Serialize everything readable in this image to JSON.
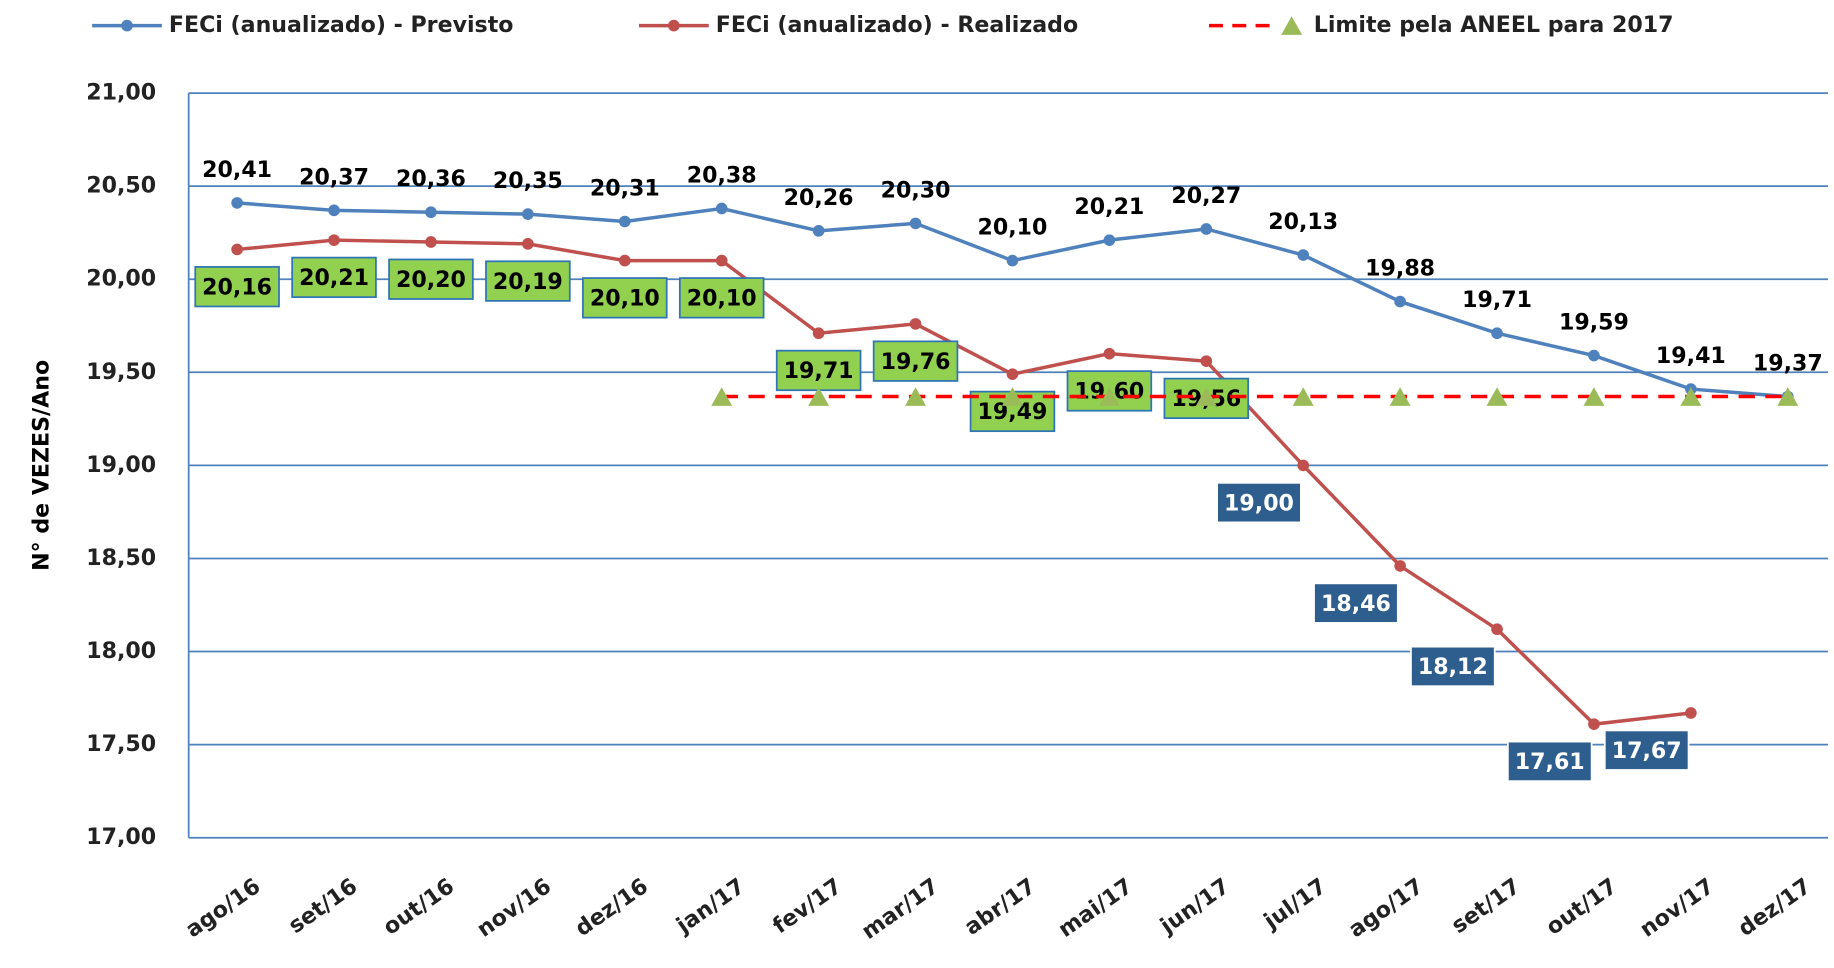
{
  "chart_data": {
    "type": "line",
    "y_label": "N° de VEZES/Ano",
    "categories": [
      "ago/16",
      "set/16",
      "out/16",
      "nov/16",
      "dez/16",
      "jan/17",
      "fev/17",
      "mar/17",
      "abr/17",
      "mai/17",
      "jun/17",
      "jul/17",
      "ago/17",
      "set/17",
      "out/17",
      "nov/17",
      "dez/17"
    ],
    "series": [
      {
        "name": "FECi (anualizado) - Previsto",
        "color": "#4f81bd",
        "values": [
          20.41,
          20.37,
          20.36,
          20.35,
          20.31,
          20.38,
          20.26,
          20.3,
          20.1,
          20.21,
          20.27,
          20.13,
          19.88,
          19.71,
          19.59,
          19.41,
          19.37
        ],
        "value_labels": [
          "20,41",
          "20,37",
          "20,36",
          "20,35",
          "20,31",
          "20,38",
          "20,26",
          "20,30",
          "20,10",
          "20,21",
          "20,27",
          "20,13",
          "19,88",
          "19,71",
          "19,59",
          "19,41",
          "19,37"
        ]
      },
      {
        "name": "FECi (anualizado) - Realizado",
        "color": "#c0504d",
        "values": [
          20.16,
          20.21,
          20.2,
          20.19,
          20.1,
          20.1,
          19.71,
          19.76,
          19.49,
          19.6,
          19.56,
          19.0,
          18.46,
          18.12,
          17.61,
          17.67,
          null
        ],
        "value_labels": [
          "20,16",
          "20,21",
          "20,20",
          "20,19",
          "20,10",
          "20,10",
          "19,71",
          "19,76",
          "19,49",
          "19,60",
          "19,56",
          "19,00",
          "18,46",
          "18,12",
          "17,61",
          "17,67",
          null
        ],
        "label_colors": [
          "#92d050",
          "#92d050",
          "#92d050",
          "#92d050",
          "#92d050",
          "#92d050",
          "#92d050",
          "#92d050",
          "#92d050",
          "#92d050",
          "#92d050",
          "#2e5e8e",
          "#2e5e8e",
          "#2e5e8e",
          "#2e5e8e",
          "#2e5e8e",
          null
        ]
      },
      {
        "name": "Limite pela ANEEL para 2017",
        "color": "#ff0000",
        "marker_color": "#9bbb59",
        "values": [
          null,
          null,
          null,
          null,
          null,
          19.37,
          19.37,
          19.37,
          19.37,
          19.37,
          19.37,
          19.37,
          19.37,
          19.37,
          19.37,
          19.37,
          19.37
        ]
      }
    ],
    "ylim": [
      17,
      21
    ],
    "yticks": [
      {
        "value": 17,
        "label": "17,00"
      },
      {
        "value": 17.5,
        "label": "17,50"
      },
      {
        "value": 18,
        "label": "18,00"
      },
      {
        "value": 18.5,
        "label": "18,50"
      },
      {
        "value": 19,
        "label": "19,00"
      },
      {
        "value": 19.5,
        "label": "19,50"
      },
      {
        "value": 20,
        "label": "20,00"
      },
      {
        "value": 20.5,
        "label": "20,50"
      },
      {
        "value": 21,
        "label": "21,00"
      }
    ],
    "grid": true
  }
}
